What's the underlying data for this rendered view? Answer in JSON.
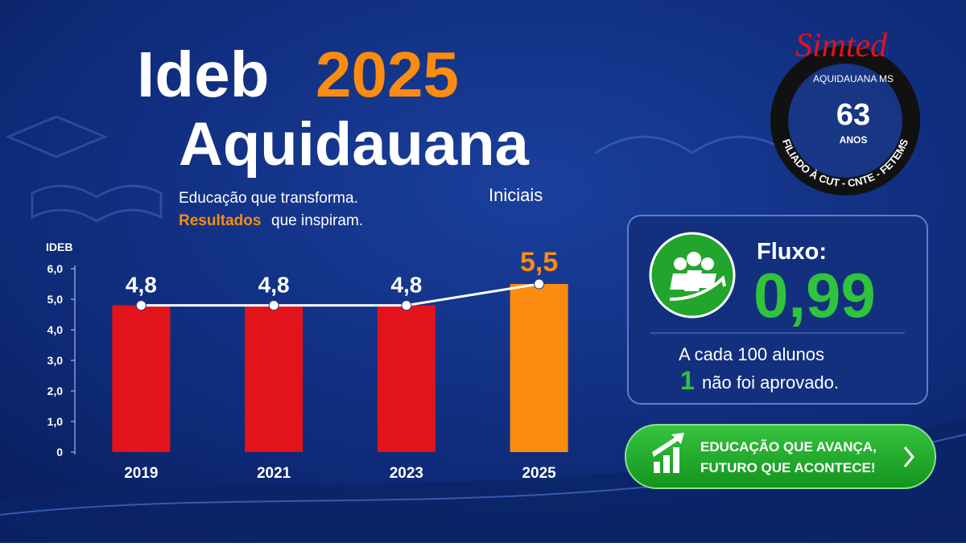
{
  "header": {
    "title_word": "Ideb",
    "title_year": "2025",
    "title_city": "Aquidauana",
    "tagline_1": "Educação que transforma.",
    "tagline_2a": "Resultados",
    "tagline_2b": "que inspiram.",
    "level": "Iniciais"
  },
  "logo": {
    "name": "Simted",
    "place": "AQUIDAUANA MS",
    "years": "63",
    "years_label": "ANOS",
    "affiliation": "FILIADO À CUT - CNTE - FETEMS"
  },
  "card": {
    "label": "Fluxo:",
    "value": "0,99",
    "line_1": "A cada 100 alunos",
    "count": "1",
    "line_2": "não foi aprovado."
  },
  "button": {
    "line_1": "EDUCAÇÃO QUE AVANÇA,",
    "line_2": "FUTURO QUE ACONTECE!"
  },
  "chart_data": {
    "type": "bar",
    "y_label": "IDEB",
    "categories": [
      "2019",
      "2021",
      "2023",
      "2025"
    ],
    "values": [
      4.8,
      4.8,
      4.8,
      5.5
    ],
    "value_labels": [
      "4,8",
      "4,8",
      "4,8",
      "5,5"
    ],
    "colors": [
      "#e3131b",
      "#e3131b",
      "#e3131b",
      "#fb8c0f"
    ],
    "value_label_colors": [
      "#ffffff",
      "#ffffff",
      "#ffffff",
      "#fb8c0f"
    ],
    "line_color": "#ffffff",
    "ylim": [
      0,
      6
    ],
    "yticks": [
      0,
      {
        "value": 1,
        "label": "1,0"
      },
      {
        "value": 2,
        "label": "2,0"
      },
      {
        "value": 3,
        "label": "3,0"
      },
      {
        "value": 4,
        "label": "4,0"
      },
      {
        "value": 5,
        "label": "5,0"
      },
      {
        "value": 6,
        "label": "6,0"
      }
    ]
  }
}
